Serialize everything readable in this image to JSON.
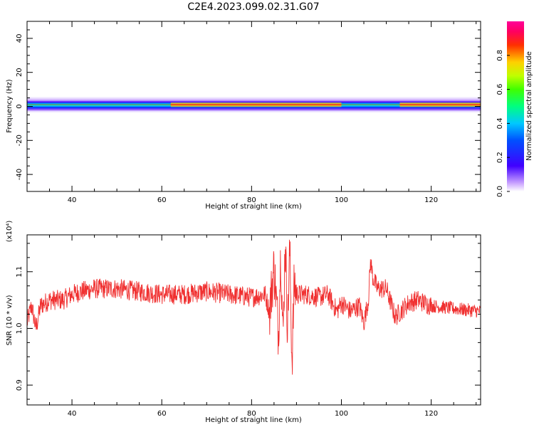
{
  "figure_title": "C2E4.2023.099.02.31.G07",
  "chart_data": [
    {
      "type": "heatmap",
      "xlabel": "Height of straight line (km)",
      "ylabel": "Frequency (Hz)",
      "xlim": [
        30,
        131
      ],
      "ylim": [
        -50,
        50
      ],
      "xticks": [
        40,
        60,
        80,
        100,
        120
      ],
      "yticks": [
        40,
        20,
        0,
        -20,
        -40
      ],
      "colorbar": {
        "label": "Normalized spectral amplitude",
        "range": [
          0,
          1
        ],
        "ticks": [
          "0.0",
          "0.2",
          "0.4",
          "0.6",
          "0.8"
        ],
        "colors": [
          "#ffffff",
          "#c8a0ff",
          "#4000ff",
          "#0050ff",
          "#00c8ff",
          "#00ff80",
          "#40ff00",
          "#c0ff00",
          "#ffd000",
          "#ff3000",
          "#ff0060",
          "#ff0099"
        ]
      },
      "band": {
        "center_hz": 1,
        "halfwidth_hz": 3,
        "notes": "Energy concentrated near 0–2 Hz across all heights; strongest (red) between ~65–100 km and ~115–131 km"
      }
    },
    {
      "type": "line",
      "xlabel": "Height of straight line (km)",
      "ylabel": "SNR (10 * v/v)",
      "ylabel_scale": "(x10⁴)",
      "xlim": [
        30,
        131
      ],
      "ylim": [
        0.865,
        1.165
      ],
      "xticks": [
        40,
        60,
        80,
        100,
        120
      ],
      "yticks": [
        "0.9",
        "1.0",
        "1.1"
      ],
      "color": "#f03030",
      "series": [
        {
          "x": [
            30,
            31,
            32,
            33,
            35,
            38,
            40,
            42,
            45,
            50,
            55,
            60,
            65,
            70,
            75,
            80,
            83,
            84,
            85,
            86,
            86.5,
            87,
            87.5,
            88,
            88.5,
            89,
            89.5,
            90,
            92,
            95,
            97,
            99,
            100,
            102,
            104,
            105,
            106,
            106.5,
            107,
            108,
            110,
            112,
            115,
            117,
            120,
            125,
            131
          ],
          "y": [
            1.01,
            1.04,
            1.0,
            1.04,
            1.05,
            1.05,
            1.06,
            1.065,
            1.07,
            1.07,
            1.065,
            1.06,
            1.06,
            1.065,
            1.06,
            1.055,
            1.06,
            1.03,
            1.11,
            0.99,
            1.14,
            0.98,
            1.16,
            1.0,
            1.14,
            0.94,
            1.08,
            1.06,
            1.06,
            1.055,
            1.06,
            1.03,
            1.045,
            1.03,
            1.04,
            1.01,
            1.05,
            1.12,
            1.09,
            1.07,
            1.07,
            1.02,
            1.045,
            1.05,
            1.04,
            1.035,
            1.03
          ]
        }
      ]
    }
  ]
}
